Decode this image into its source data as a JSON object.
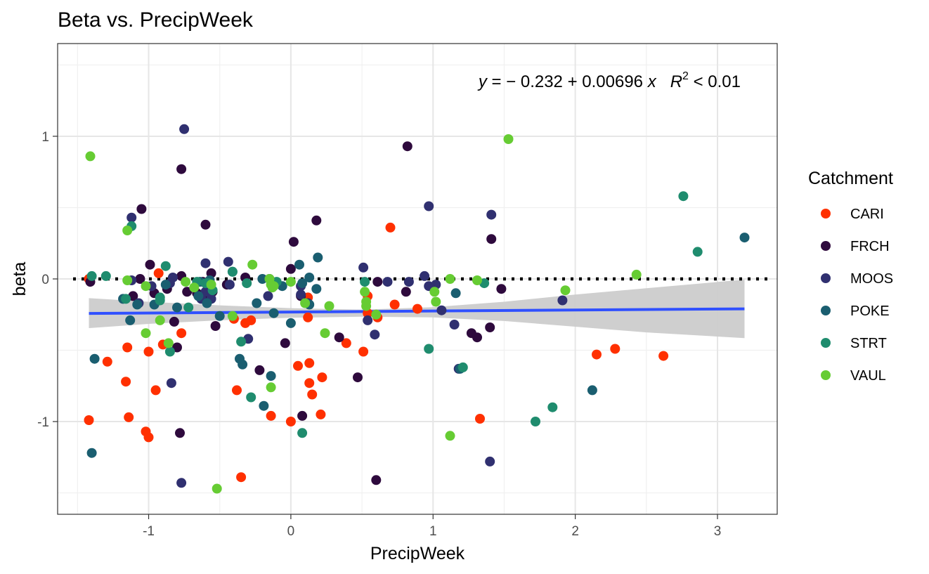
{
  "chart_data": {
    "type": "scatter",
    "title": "Beta vs. PrecipWeek",
    "xlabel": "PrecipWeek",
    "ylabel": "beta",
    "xlim": [
      -1.64,
      3.42
    ],
    "ylim": [
      -1.65,
      1.65
    ],
    "x_ticks": [
      -1,
      0,
      1,
      2,
      3
    ],
    "y_ticks": [
      -1,
      0,
      1
    ],
    "x_tick_labels": [
      "-1",
      "0",
      "1",
      "2",
      "3"
    ],
    "y_tick_labels": [
      "-1",
      "0",
      "1"
    ],
    "grid": true,
    "legend_title": "Catchment",
    "legend_position": "right",
    "annotation": {
      "y_lead": "y",
      "eq_body": " = − 0.232 + 0.00696 ",
      "x_var": "x",
      "r_var": "R",
      "r_sup": "2",
      "r_rest": " < 0.01"
    },
    "hline": {
      "y": 0,
      "style": "dotted",
      "color": "#000000"
    },
    "fit": {
      "color": "#3050ff",
      "x": [
        -1.42,
        3.19
      ],
      "intercept": -0.232,
      "slope": 0.00696,
      "band_color": "#cccccc",
      "band": {
        "x": [
          -1.42,
          -1.0,
          -0.5,
          0.0,
          0.5,
          1.0,
          1.5,
          2.0,
          2.5,
          3.19
        ],
        "lower": [
          -0.345,
          -0.315,
          -0.29,
          -0.272,
          -0.265,
          -0.27,
          -0.295,
          -0.335,
          -0.375,
          -0.415
        ],
        "upper": [
          -0.135,
          -0.16,
          -0.185,
          -0.205,
          -0.215,
          -0.198,
          -0.16,
          -0.11,
          -0.065,
          -0.005
        ]
      }
    },
    "series": [
      {
        "name": "CARI",
        "color": "#ff3000",
        "x": [
          -1.42,
          -1.42,
          -1.15,
          -1.16,
          -1.14,
          -1.02,
          -1.0,
          -1.0,
          -0.95,
          -0.93,
          -0.9,
          -0.77,
          -1.29,
          -0.4,
          -0.38,
          -0.35,
          -0.32,
          -0.28,
          -0.14,
          0.0,
          0.05,
          0.12,
          0.12,
          0.13,
          0.13,
          0.15,
          0.21,
          0.22,
          0.39,
          0.51,
          0.54,
          0.54,
          0.61,
          0.7,
          0.73,
          0.89,
          1.33,
          2.15,
          2.28,
          2.62
        ],
        "y": [
          0.0,
          -0.99,
          -0.48,
          -0.72,
          -0.97,
          -1.07,
          -0.51,
          -1.11,
          -0.78,
          0.04,
          -0.46,
          -0.38,
          -0.58,
          -0.28,
          -0.78,
          -1.39,
          -0.31,
          -0.29,
          -0.96,
          -1.0,
          -0.61,
          -0.13,
          -0.27,
          -0.59,
          -0.73,
          -0.81,
          -0.95,
          -0.69,
          -0.45,
          -0.51,
          -0.24,
          -0.12,
          -0.27,
          0.36,
          -0.18,
          -0.21,
          -0.98,
          -0.53,
          -0.49,
          -0.54
        ]
      },
      {
        "name": "FRCH",
        "color": "#2e0a3d",
        "x": [
          -1.41,
          -1.11,
          -1.06,
          -1.05,
          -0.99,
          -0.96,
          -0.87,
          -0.82,
          -0.8,
          -0.77,
          -0.77,
          -0.78,
          -0.73,
          -0.6,
          -0.62,
          -0.56,
          -0.55,
          -0.53,
          -0.45,
          -0.22,
          -0.04,
          0.0,
          0.02,
          0.08,
          0.18,
          0.34,
          0.47,
          0.6,
          0.61,
          0.82,
          0.81,
          1.27,
          1.31,
          1.4,
          1.41,
          1.48,
          -0.66,
          -0.32,
          0.07,
          -0.58
        ],
        "y": [
          -0.02,
          -0.12,
          0.0,
          0.49,
          0.1,
          -0.1,
          -0.07,
          -0.3,
          -0.48,
          0.02,
          0.77,
          -1.08,
          -0.09,
          0.38,
          -0.02,
          0.04,
          -0.09,
          -0.33,
          -0.04,
          -0.64,
          -0.45,
          0.07,
          0.26,
          -0.96,
          0.41,
          -0.41,
          -0.69,
          -1.41,
          -0.02,
          0.93,
          -0.09,
          -0.38,
          -0.41,
          -0.34,
          0.28,
          -0.07,
          -0.1,
          0.01,
          -0.12,
          -0.14
        ]
      },
      {
        "name": "MOOS",
        "color": "#303070",
        "x": [
          -1.12,
          -1.12,
          -1.07,
          -0.98,
          -0.84,
          -0.83,
          -0.77,
          -0.75,
          -0.63,
          -0.6,
          -0.56,
          -0.44,
          -0.3,
          -0.16,
          -0.15,
          0.07,
          0.07,
          0.12,
          0.51,
          0.54,
          0.59,
          0.68,
          0.83,
          0.94,
          0.97,
          0.97,
          1.02,
          1.06,
          1.15,
          1.18,
          1.4,
          1.41,
          1.91,
          -0.85,
          -0.43,
          -0.6
        ],
        "y": [
          0.43,
          -0.01,
          -0.17,
          -0.05,
          -0.73,
          0.01,
          -1.43,
          1.05,
          -0.14,
          0.11,
          -0.14,
          0.12,
          -0.42,
          -0.12,
          0.0,
          -0.05,
          -0.11,
          -0.17,
          0.08,
          -0.29,
          -0.39,
          -0.02,
          -0.02,
          0.02,
          -0.05,
          0.51,
          -0.04,
          -0.22,
          -0.32,
          -0.63,
          -1.28,
          0.45,
          -0.15,
          -0.03,
          -0.04,
          -0.09
        ]
      },
      {
        "name": "POKE",
        "color": "#1a5e70",
        "x": [
          -1.4,
          -1.38,
          -1.18,
          -1.13,
          -1.08,
          -0.96,
          -0.8,
          -0.65,
          -0.59,
          -0.57,
          -0.41,
          -0.36,
          -0.34,
          -0.2,
          -0.19,
          -0.14,
          -0.12,
          -0.06,
          0.0,
          0.06,
          0.13,
          0.13,
          0.18,
          0.19,
          1.16,
          1.19,
          2.12,
          3.19,
          0.08,
          -0.88,
          -0.64,
          -0.24,
          -0.5
        ],
        "y": [
          -1.22,
          -0.56,
          -0.14,
          -0.29,
          -0.18,
          -0.18,
          -0.2,
          -0.12,
          -0.17,
          -0.01,
          0.05,
          -0.56,
          -0.6,
          0.0,
          -0.89,
          -0.68,
          -0.24,
          -0.05,
          -0.31,
          0.1,
          0.01,
          -0.18,
          -0.07,
          0.15,
          -0.1,
          -0.63,
          -0.78,
          0.29,
          -0.03,
          -0.04,
          -0.02,
          -0.17,
          -0.26
        ]
      },
      {
        "name": "STRT",
        "color": "#1f8c6e",
        "x": [
          -1.4,
          -1.3,
          -1.16,
          -1.12,
          -0.92,
          -0.88,
          -0.85,
          -0.66,
          -0.6,
          -0.58,
          -0.35,
          -0.28,
          -0.31,
          -0.41,
          0.08,
          0.97,
          1.21,
          1.36,
          1.72,
          1.84,
          2.76,
          2.86,
          -0.72,
          -0.92,
          -0.1,
          -0.55,
          0.52
        ],
        "y": [
          0.02,
          0.02,
          -0.14,
          0.37,
          -0.13,
          0.09,
          -0.51,
          -0.02,
          -0.03,
          -0.03,
          -0.44,
          -0.83,
          -0.03,
          0.05,
          -1.08,
          -0.49,
          -0.62,
          -0.03,
          -1.0,
          -0.9,
          0.58,
          0.19,
          -0.2,
          -0.15,
          -0.02,
          -0.08,
          -0.02
        ]
      },
      {
        "name": "VAUL",
        "color": "#66cc33",
        "x": [
          -1.41,
          -1.15,
          -1.15,
          -1.02,
          -1.02,
          -0.92,
          -0.86,
          -0.74,
          -0.68,
          -0.56,
          -0.52,
          -0.41,
          -0.27,
          -0.15,
          -0.14,
          -0.14,
          -0.12,
          -0.13,
          0.0,
          0.1,
          0.24,
          0.27,
          0.52,
          0.53,
          0.53,
          0.6,
          1.01,
          1.02,
          1.12,
          1.12,
          1.31,
          1.53,
          1.93,
          2.43,
          -0.13
        ],
        "y": [
          0.86,
          0.34,
          -0.01,
          -0.05,
          -0.38,
          -0.29,
          -0.45,
          -0.02,
          -0.06,
          -0.04,
          -1.47,
          -0.26,
          0.1,
          0.0,
          -0.04,
          -0.76,
          -0.05,
          -0.05,
          -0.02,
          -0.17,
          -0.38,
          -0.19,
          -0.09,
          -0.16,
          -0.19,
          -0.25,
          -0.09,
          -0.16,
          0.0,
          -1.1,
          -0.01,
          0.98,
          -0.08,
          0.03,
          -0.06
        ]
      }
    ]
  }
}
